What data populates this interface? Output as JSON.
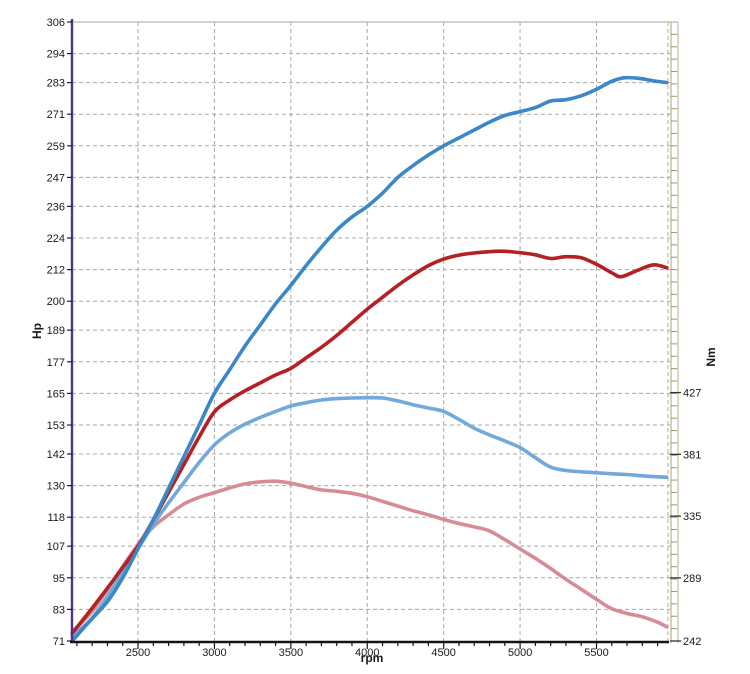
{
  "chart_data": {
    "type": "line",
    "title": "",
    "xlabel": "rpm",
    "ylabel_left": "Hp",
    "ylabel_right": "Nm",
    "grid": "dashed",
    "legend": "none",
    "x_axis": {
      "min": 2068,
      "max": 5994,
      "labeled_ticks": [
        2500,
        3000,
        3500,
        4000,
        4500,
        5000,
        5500
      ],
      "minor_tick_step": 100,
      "gridlines": [
        2500,
        3000,
        3500,
        4000,
        4500,
        5000,
        5500,
        5968
      ]
    },
    "y_axis_left": {
      "unit": "Hp",
      "min": 71,
      "max": 306,
      "tick_labels": [
        306,
        294,
        283,
        271,
        259,
        247,
        236,
        224,
        212,
        200,
        189,
        177,
        165,
        153,
        142,
        130,
        118,
        107,
        95,
        83,
        71
      ],
      "axis_color": "#4e3287"
    },
    "y_axis_right": {
      "unit": "Nm",
      "min": 242,
      "max": 703,
      "tick_labels": [
        427,
        381,
        335,
        289,
        242
      ],
      "minor_tick_step": 9.22,
      "axis_color": "#c9bc9b"
    },
    "series": [
      {
        "id": "hp-tuned",
        "axis": "left",
        "color": "#3c87c7",
        "width": 3.6,
        "points": [
          [
            2070,
            71
          ],
          [
            2160,
            77
          ],
          [
            2300,
            86
          ],
          [
            2400,
            95
          ],
          [
            2500,
            106
          ],
          [
            2600,
            117
          ],
          [
            2700,
            129
          ],
          [
            2800,
            141
          ],
          [
            2900,
            153
          ],
          [
            3000,
            165
          ],
          [
            3100,
            174
          ],
          [
            3200,
            183
          ],
          [
            3300,
            191
          ],
          [
            3400,
            199
          ],
          [
            3500,
            206
          ],
          [
            3600,
            213.5
          ],
          [
            3700,
            220.5
          ],
          [
            3800,
            227
          ],
          [
            3900,
            232
          ],
          [
            4000,
            236
          ],
          [
            4100,
            241
          ],
          [
            4200,
            247
          ],
          [
            4300,
            251.5
          ],
          [
            4400,
            255.5
          ],
          [
            4500,
            259
          ],
          [
            4600,
            262
          ],
          [
            4700,
            265
          ],
          [
            4800,
            268
          ],
          [
            4900,
            270.5
          ],
          [
            5000,
            272
          ],
          [
            5100,
            273.5
          ],
          [
            5200,
            276
          ],
          [
            5300,
            276.5
          ],
          [
            5400,
            278
          ],
          [
            5500,
            280.5
          ],
          [
            5600,
            283.5
          ],
          [
            5680,
            284.8
          ],
          [
            5780,
            284.6
          ],
          [
            5880,
            283.6
          ],
          [
            5960,
            283
          ]
        ]
      },
      {
        "id": "hp-stock",
        "axis": "left",
        "color": "#b52025",
        "width": 3.6,
        "points": [
          [
            2070,
            74
          ],
          [
            2200,
            83.5
          ],
          [
            2350,
            95
          ],
          [
            2500,
            107
          ],
          [
            2600,
            117
          ],
          [
            2700,
            127.5
          ],
          [
            2800,
            138
          ],
          [
            2900,
            148.5
          ],
          [
            3000,
            158
          ],
          [
            3100,
            162.5
          ],
          [
            3200,
            166
          ],
          [
            3300,
            169
          ],
          [
            3400,
            172
          ],
          [
            3500,
            174.5
          ],
          [
            3600,
            178.5
          ],
          [
            3700,
            182.5
          ],
          [
            3800,
            187
          ],
          [
            3900,
            192
          ],
          [
            4000,
            197
          ],
          [
            4100,
            201.5
          ],
          [
            4200,
            206
          ],
          [
            4300,
            210
          ],
          [
            4400,
            213.5
          ],
          [
            4500,
            216
          ],
          [
            4600,
            217.5
          ],
          [
            4700,
            218.3
          ],
          [
            4870,
            219
          ],
          [
            5000,
            218.4
          ],
          [
            5100,
            217.6
          ],
          [
            5200,
            216.2
          ],
          [
            5300,
            216.9
          ],
          [
            5400,
            216.5
          ],
          [
            5500,
            214
          ],
          [
            5600,
            210.8
          ],
          [
            5660,
            209.3
          ],
          [
            5760,
            211.5
          ],
          [
            5870,
            213.8
          ],
          [
            5960,
            212.7
          ]
        ]
      },
      {
        "id": "torque-tuned",
        "axis": "right",
        "color": "#70a9da",
        "width": 3.6,
        "points": [
          [
            2070,
            246
          ],
          [
            2200,
            259
          ],
          [
            2350,
            284
          ],
          [
            2500,
            311
          ],
          [
            2650,
            337
          ],
          [
            2800,
            360
          ],
          [
            2900,
            375
          ],
          [
            3000,
            388
          ],
          [
            3100,
            397
          ],
          [
            3200,
            403.5
          ],
          [
            3300,
            408.5
          ],
          [
            3400,
            413
          ],
          [
            3500,
            417
          ],
          [
            3600,
            419.5
          ],
          [
            3700,
            421.5
          ],
          [
            3800,
            422.5
          ],
          [
            3900,
            423
          ],
          [
            4000,
            423.2
          ],
          [
            4100,
            423
          ],
          [
            4200,
            420.8
          ],
          [
            4300,
            418
          ],
          [
            4400,
            415.5
          ],
          [
            4500,
            413
          ],
          [
            4600,
            407
          ],
          [
            4700,
            400.5
          ],
          [
            4800,
            395.5
          ],
          [
            4900,
            391
          ],
          [
            5000,
            386
          ],
          [
            5100,
            378.5
          ],
          [
            5200,
            371.5
          ],
          [
            5300,
            369
          ],
          [
            5400,
            368
          ],
          [
            5500,
            367.3
          ],
          [
            5600,
            366.5
          ],
          [
            5700,
            366
          ],
          [
            5800,
            365
          ],
          [
            5900,
            364.3
          ],
          [
            5960,
            364
          ]
        ]
      },
      {
        "id": "torque-stock",
        "axis": "right",
        "color": "#d68c96",
        "width": 3.6,
        "points": [
          [
            2070,
            249
          ],
          [
            2200,
            264
          ],
          [
            2350,
            289
          ],
          [
            2500,
            314
          ],
          [
            2600,
            327
          ],
          [
            2700,
            336
          ],
          [
            2800,
            344
          ],
          [
            2900,
            349
          ],
          [
            3000,
            352.5
          ],
          [
            3100,
            356
          ],
          [
            3200,
            359
          ],
          [
            3300,
            360.5
          ],
          [
            3400,
            361
          ],
          [
            3500,
            359.5
          ],
          [
            3600,
            357
          ],
          [
            3700,
            354.5
          ],
          [
            3800,
            353.5
          ],
          [
            3900,
            352
          ],
          [
            4000,
            349.5
          ],
          [
            4100,
            346
          ],
          [
            4200,
            342.5
          ],
          [
            4300,
            339
          ],
          [
            4400,
            336
          ],
          [
            4500,
            332.5
          ],
          [
            4600,
            329.5
          ],
          [
            4700,
            327
          ],
          [
            4800,
            324
          ],
          [
            4900,
            317.5
          ],
          [
            5000,
            310.5
          ],
          [
            5100,
            303.5
          ],
          [
            5200,
            296
          ],
          [
            5300,
            288
          ],
          [
            5400,
            280.5
          ],
          [
            5500,
            273
          ],
          [
            5600,
            266
          ],
          [
            5700,
            262.5
          ],
          [
            5800,
            260
          ],
          [
            5900,
            256
          ],
          [
            5960,
            252.5
          ]
        ]
      }
    ],
    "colors": {
      "grid": "#a8a8a8",
      "x_axis": "#141414",
      "top_border": "#b8b8b8",
      "tick_label": "#1a1a1a",
      "right_axis_minor_tick": "#a2946e"
    }
  }
}
